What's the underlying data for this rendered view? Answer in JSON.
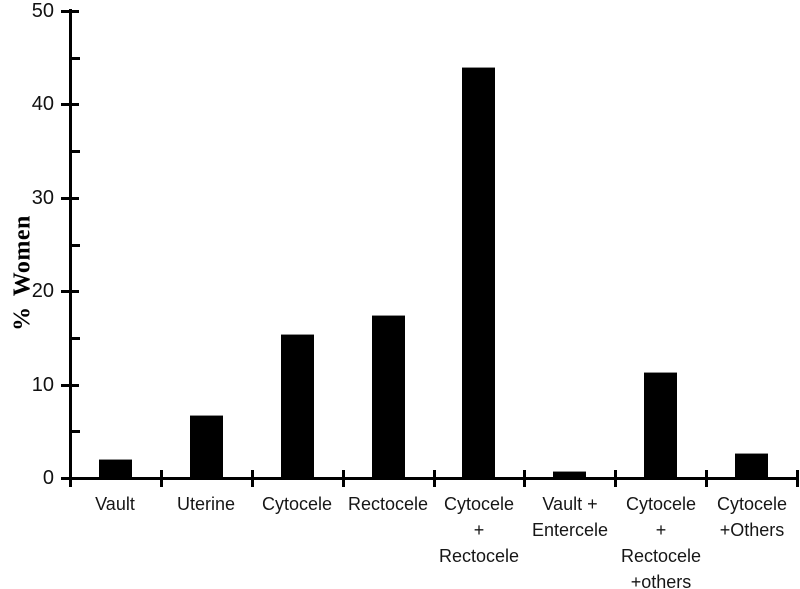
{
  "chart_data": {
    "type": "bar",
    "title": "",
    "xlabel": "",
    "ylabel": "% Women",
    "ylim": [
      0,
      50
    ],
    "y_major_ticks": [
      0,
      10,
      20,
      30,
      40,
      50
    ],
    "y_minor_ticks": [
      5,
      15,
      25,
      35,
      45
    ],
    "grid": false,
    "legend_position": "none",
    "bar_color": "#000000",
    "axis_color": "#000000",
    "categories": [
      "Vault",
      "Uterine",
      "Cytocele",
      "Rectocele",
      "Cytocele + Rectocele",
      "Vault + Entercele",
      "Cytocele + Rectocele +others",
      "Cytocele +Others"
    ],
    "category_label_lines": [
      [
        "Vault"
      ],
      [
        "Uterine"
      ],
      [
        "Cytocele"
      ],
      [
        "Rectocele"
      ],
      [
        "Cytocele",
        "+",
        "Rectocele"
      ],
      [
        "Vault +",
        "Entercele"
      ],
      [
        "Cytocele",
        "+",
        "Rectocele",
        "+others"
      ],
      [
        "Cytocele",
        "+Others"
      ]
    ],
    "values": [
      2.0,
      6.7,
      15.4,
      17.4,
      44.0,
      0.7,
      11.4,
      2.7
    ]
  }
}
